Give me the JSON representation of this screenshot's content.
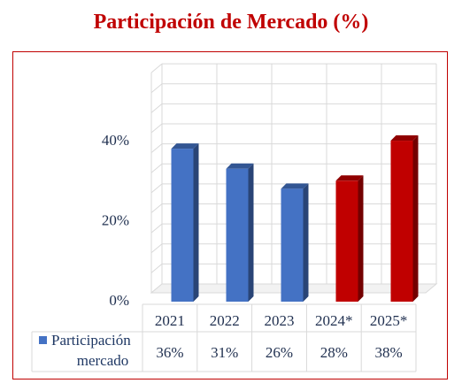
{
  "title": "Participación de Mercado (%)",
  "chart_data": {
    "type": "bar",
    "title": "Participación de Mercado (%)",
    "categories": [
      "2021",
      "2022",
      "2023",
      "2024*",
      "2025*"
    ],
    "series": [
      {
        "name": "Participación mercado",
        "values": [
          36,
          31,
          26,
          28,
          38
        ]
      }
    ],
    "value_labels": [
      "36%",
      "31%",
      "26%",
      "28%",
      "38%"
    ],
    "y_ticks": [
      "0%",
      "20%",
      "40%"
    ],
    "ylim": [
      0,
      40
    ],
    "bar_colors": [
      "#4472c4",
      "#4472c4",
      "#4472c4",
      "#c00000",
      "#c00000"
    ],
    "legend": {
      "label_lines": [
        "Participación",
        "mercado"
      ],
      "color": "#4472c4",
      "placement": "data-table-left"
    },
    "grid": true,
    "style": "3d-columns-with-data-table"
  }
}
